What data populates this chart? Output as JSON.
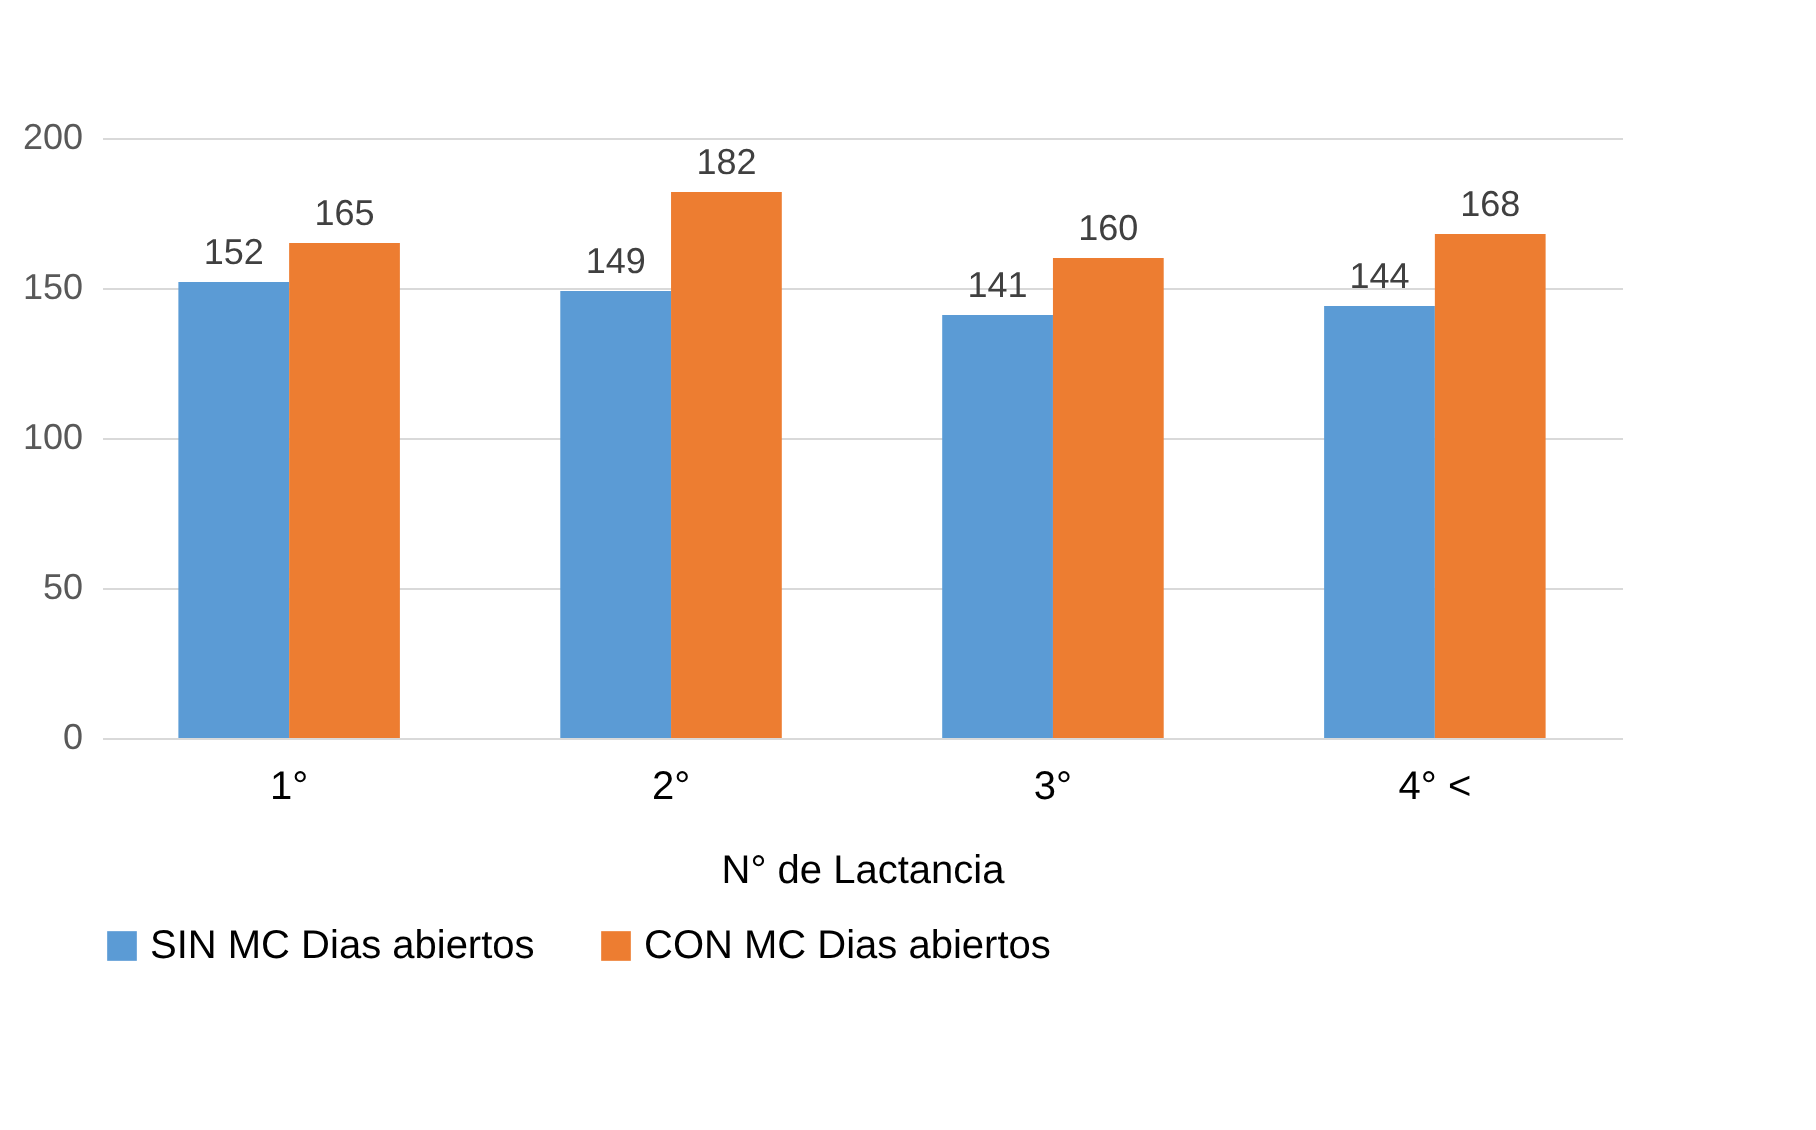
{
  "chart_data": {
    "type": "bar",
    "xlabel": "N° de Lactancia",
    "categories": [
      "1°",
      "2°",
      "3°",
      "4° <"
    ],
    "series": [
      {
        "name": "SIN MC Dias abiertos",
        "color": "#5b9bd5",
        "values": [
          152,
          149,
          141,
          144
        ]
      },
      {
        "name": "CON MC Dias abiertos",
        "color": "#ed7d31",
        "values": [
          165,
          182,
          160,
          168
        ]
      }
    ],
    "ylim": [
      0,
      200
    ],
    "yticks": [
      0,
      50,
      100,
      150,
      200
    ],
    "grid": "y",
    "data_labels": true,
    "legend": "bottom"
  }
}
